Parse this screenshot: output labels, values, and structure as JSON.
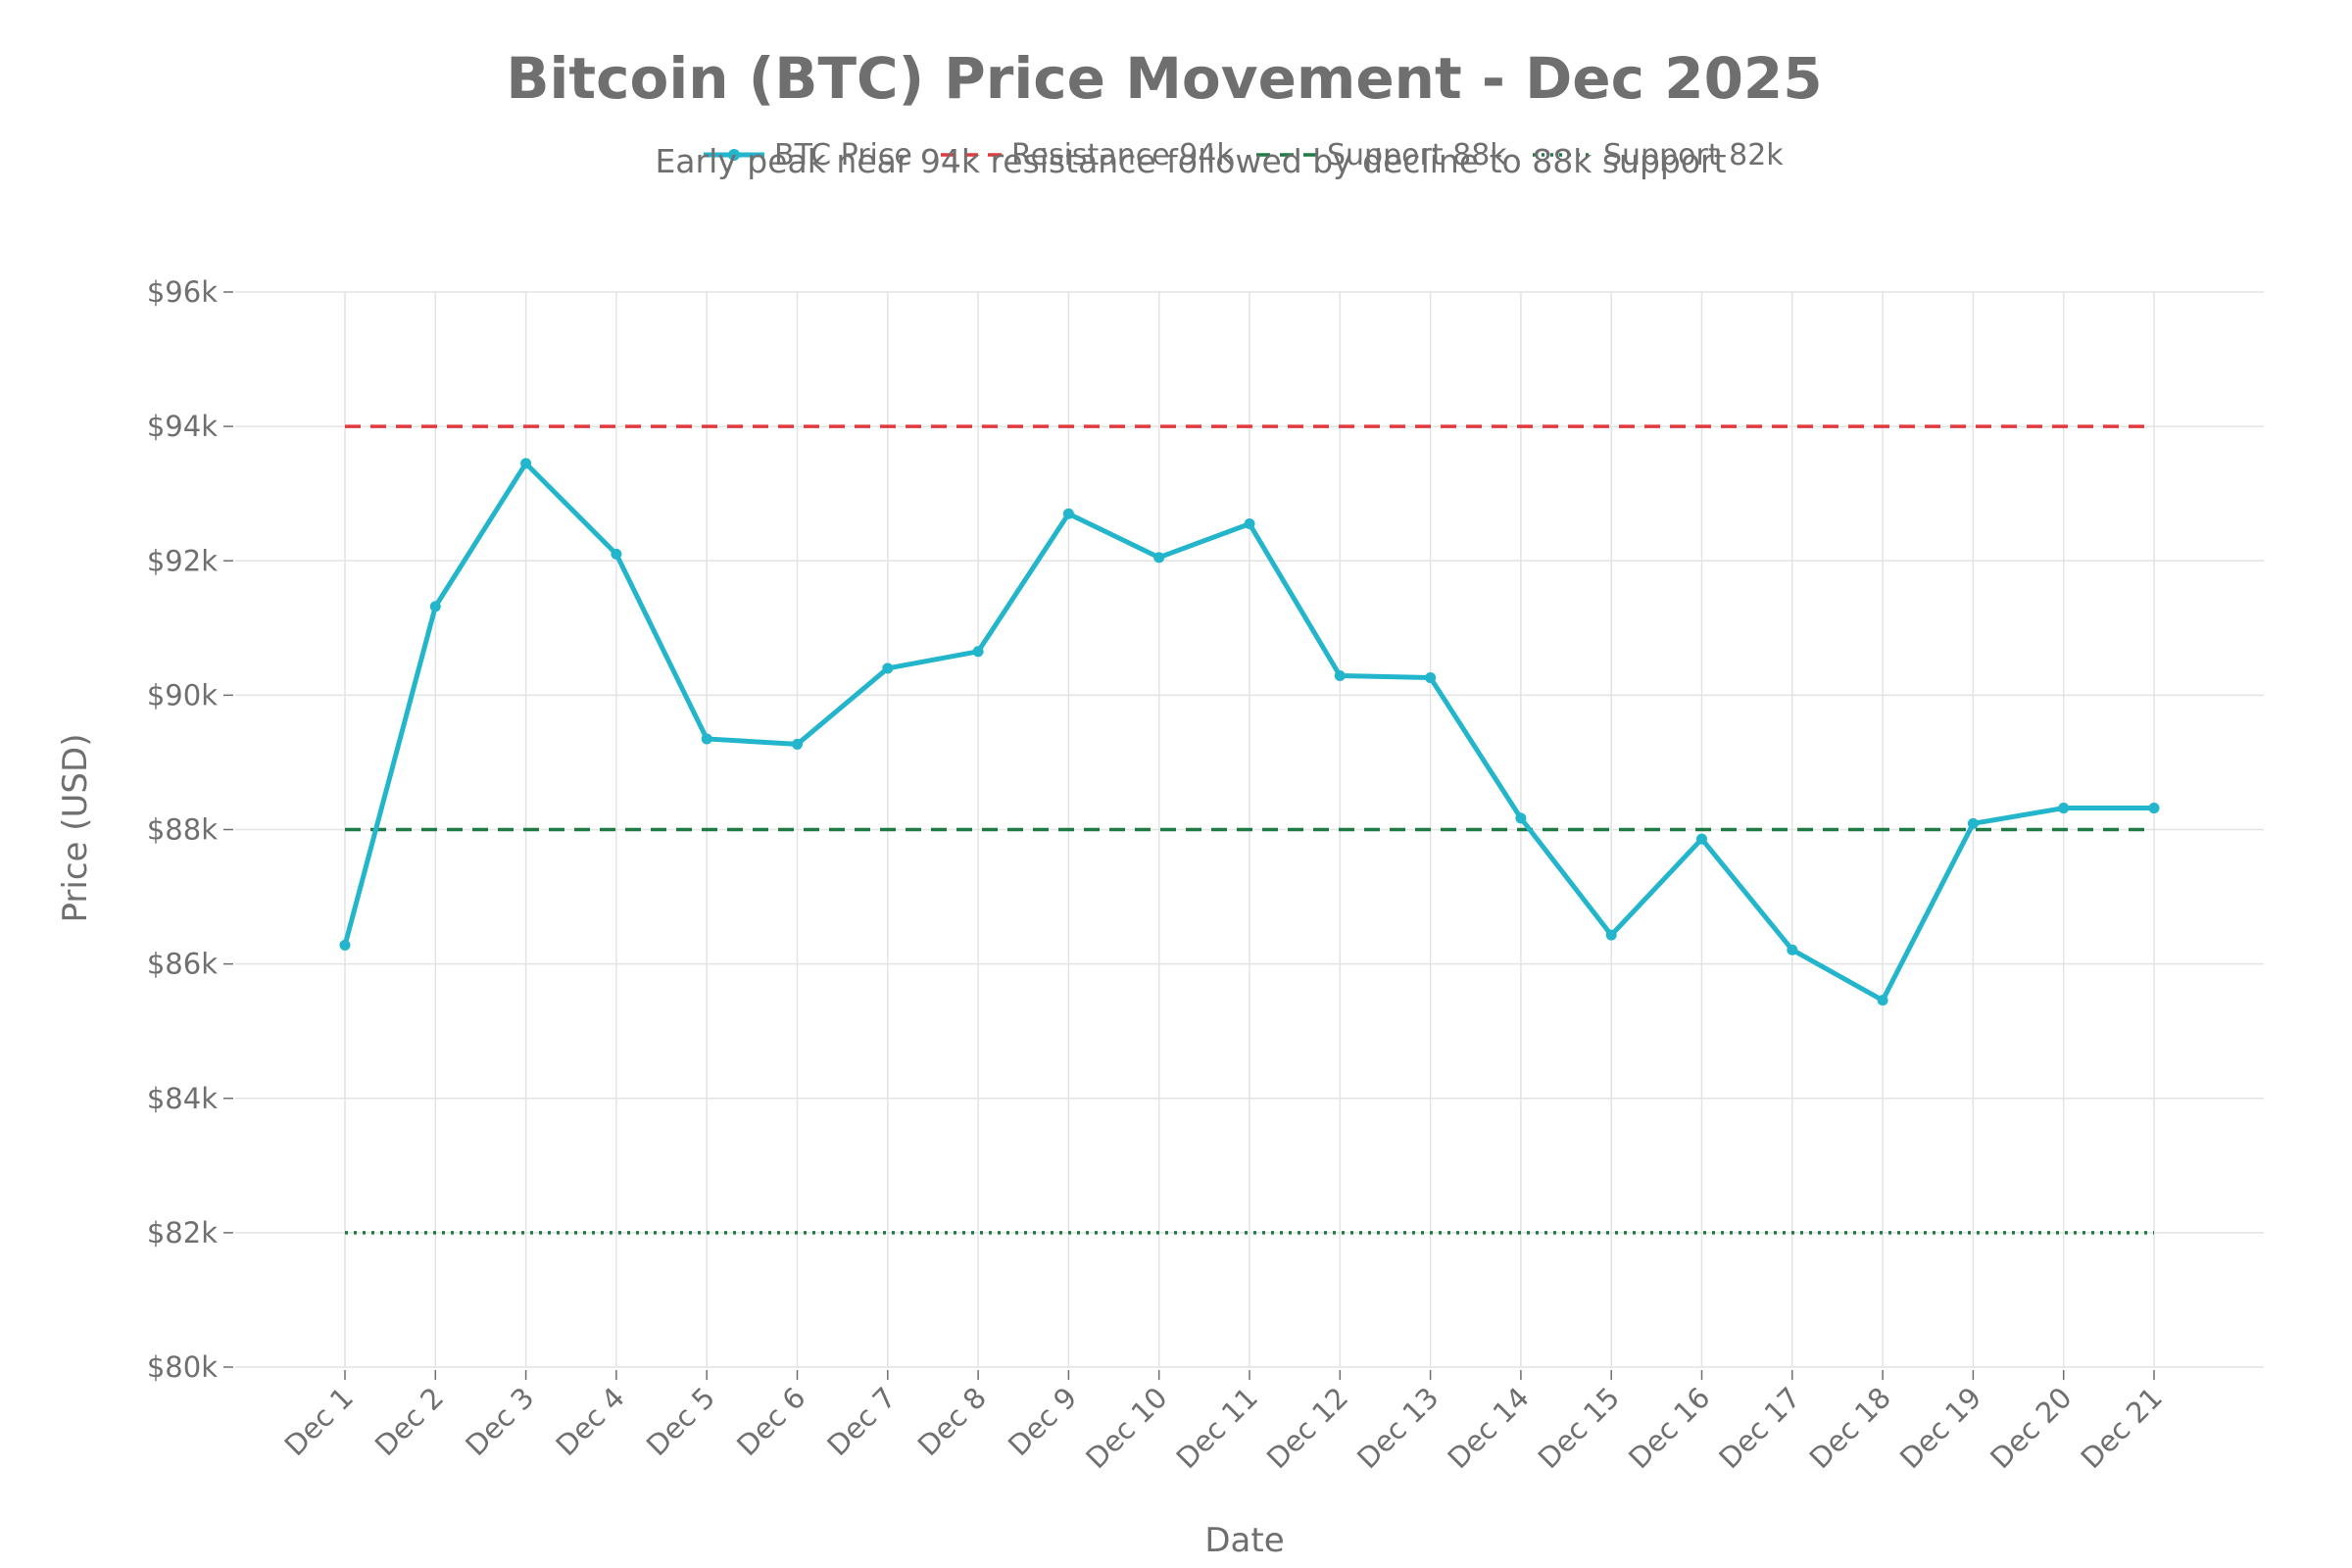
{
  "chart_data": {
    "type": "line",
    "title": "Bitcoin (BTC) Price Movement - Dec 2025",
    "subtitle": "Early peak near 94k resistance followed by decline to 88k support",
    "xlabel": "Date",
    "ylabel": "Price (USD)",
    "ylim": [
      80000,
      96000
    ],
    "yticks": [
      80000,
      82000,
      84000,
      86000,
      88000,
      90000,
      92000,
      94000,
      96000
    ],
    "ytick_labels": [
      "$80k",
      "$82k",
      "$84k",
      "$86k",
      "$88k",
      "$90k",
      "$92k",
      "$94k",
      "$96k"
    ],
    "grid": true,
    "legend_position": "top-center",
    "categories": [
      "Dec 1",
      "Dec 2",
      "Dec 3",
      "Dec 4",
      "Dec 5",
      "Dec 6",
      "Dec 7",
      "Dec 8",
      "Dec 9",
      "Dec 10",
      "Dec 11",
      "Dec 12",
      "Dec 13",
      "Dec 14",
      "Dec 15",
      "Dec 16",
      "Dec 17",
      "Dec 18",
      "Dec 19",
      "Dec 20",
      "Dec 21"
    ],
    "series": [
      {
        "name": "BTC Price",
        "color": "#22b5cc",
        "style": "solid-markers",
        "values": [
          86280,
          91320,
          93450,
          92100,
          89350,
          89270,
          90400,
          90650,
          92700,
          92050,
          92550,
          90290,
          90260,
          88170,
          86430,
          87860,
          86210,
          85460,
          88090,
          88320,
          88320
        ]
      },
      {
        "name": "Resistance 94k",
        "color": "#e0393e",
        "style": "dashed",
        "values": [
          94000,
          94000,
          94000,
          94000,
          94000,
          94000,
          94000,
          94000,
          94000,
          94000,
          94000,
          94000,
          94000,
          94000,
          94000,
          94000,
          94000,
          94000,
          94000,
          94000,
          94000
        ]
      },
      {
        "name": "Support 88k",
        "color": "#1f7a45",
        "style": "dashed",
        "values": [
          88000,
          88000,
          88000,
          88000,
          88000,
          88000,
          88000,
          88000,
          88000,
          88000,
          88000,
          88000,
          88000,
          88000,
          88000,
          88000,
          88000,
          88000,
          88000,
          88000,
          88000
        ]
      },
      {
        "name": "Support 82k",
        "color": "#1f7a45",
        "style": "dotted",
        "values": [
          82000,
          82000,
          82000,
          82000,
          82000,
          82000,
          82000,
          82000,
          82000,
          82000,
          82000,
          82000,
          82000,
          82000,
          82000,
          82000,
          82000,
          82000,
          82000,
          82000,
          82000
        ]
      }
    ]
  }
}
